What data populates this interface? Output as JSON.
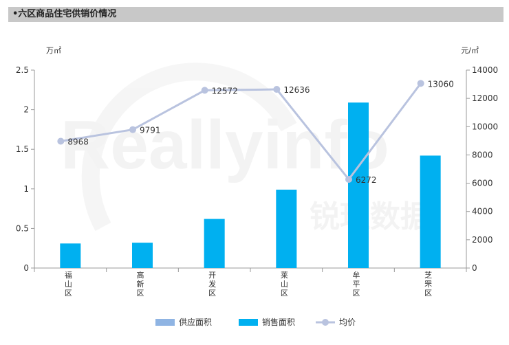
{
  "header": {
    "title": "•六区商品住宅供销价情况"
  },
  "watermark": {
    "text_latin": "Reallyinfo",
    "text_cn": "锐理数据"
  },
  "chart_data": {
    "type": "bar",
    "categories": [
      "福山区",
      "高新区",
      "开发区",
      "莱山区",
      "牟平区",
      "芝罘区"
    ],
    "series": [
      {
        "name": "供应面积",
        "kind": "bar",
        "axis": "left",
        "color": "#8fb4e3",
        "values": [
          0,
          0,
          0,
          0,
          0,
          0
        ]
      },
      {
        "name": "销售面积",
        "kind": "bar",
        "axis": "left",
        "color": "#00b0f0",
        "values": [
          0.31,
          0.32,
          0.62,
          0.99,
          2.09,
          1.42
        ]
      },
      {
        "name": "均价",
        "kind": "line",
        "axis": "right",
        "color": "#b9c3df",
        "values": [
          8968,
          9791,
          12572,
          12636,
          6272,
          13060
        ]
      }
    ],
    "y_left": {
      "unit": "万㎡",
      "min": 0,
      "max": 2.5,
      "ticks": [
        0,
        0.5,
        1,
        1.5,
        2,
        2.5
      ],
      "tick_labels": [
        "0",
        "0.5",
        "1",
        "1.5",
        "2",
        "2.5"
      ]
    },
    "y_right": {
      "unit": "元/㎡",
      "min": 0,
      "max": 14000,
      "ticks": [
        0,
        2000,
        4000,
        6000,
        8000,
        10000,
        12000,
        14000
      ],
      "tick_labels": [
        "0",
        "2000",
        "4000",
        "6000",
        "8000",
        "10000",
        "12000",
        "14000"
      ]
    },
    "grid": false,
    "legend_position": "bottom"
  }
}
